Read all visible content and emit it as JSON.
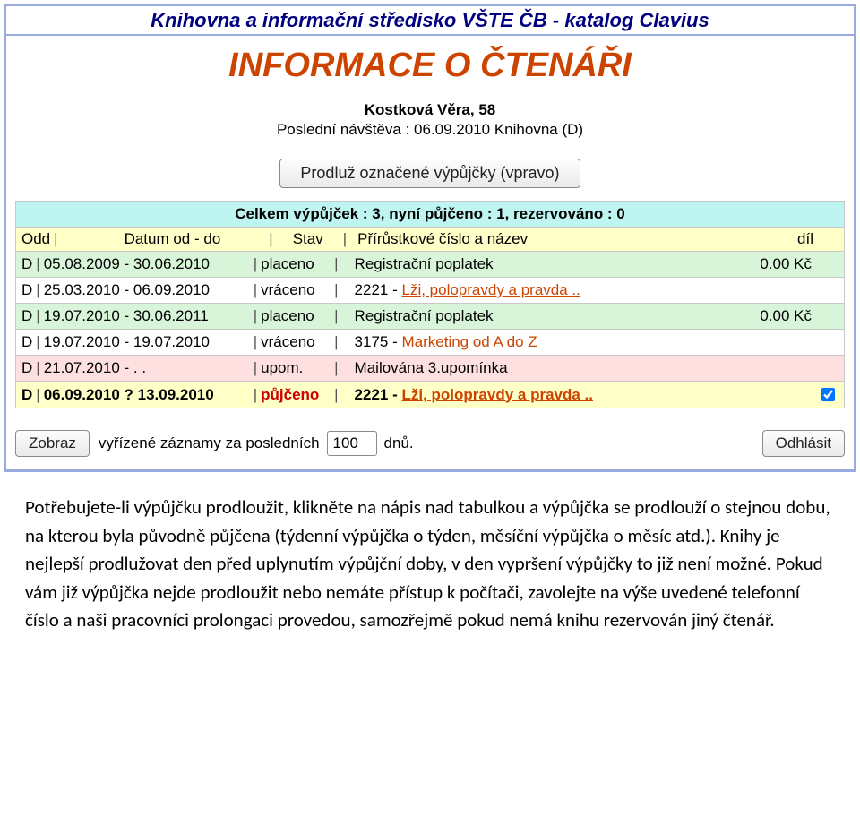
{
  "colors": {
    "accent": "#cc4400",
    "title_navy": "#000080",
    "panel_border": "#99aadd",
    "row_green": "#d9f5d9",
    "row_white": "#ffffff",
    "row_pink": "#ffe0e0",
    "row_yellow": "#ffffc8",
    "summary_bg": "#bff5f0"
  },
  "title_bar": "Knihovna a informační středisko VŠTE ČB - katalog Clavius",
  "heading": "INFORMACE O ČTENÁŘI",
  "reader": {
    "name": "Kostková Věra, 58",
    "last_visit": "Poslední návštěva : 06.09.2010 Knihovna (D)"
  },
  "prolong_button": "Prodluž označené výpůjčky (vpravo)",
  "summary_line": "Celkem výpůjček : 3, nyní půjčeno : 1, rezervováno : 0",
  "columns": {
    "odd": "Odd",
    "datum": "Datum od - do",
    "stav": "Stav",
    "prir": "Přírůstkové číslo a název",
    "dil": "díl"
  },
  "rows": [
    {
      "bg": "bg-green",
      "odd": "D",
      "dates": "05.08.2009 - 30.06.2010",
      "status": "placeno",
      "status_class": "",
      "id": "",
      "title_plain": "Registrační poplatek",
      "title_link": "",
      "amount": "0.00 Kč",
      "bold_row": false,
      "checkbox": false
    },
    {
      "bg": "bg-white",
      "odd": "D",
      "dates": "25.03.2010 - 06.09.2010",
      "status": "vráceno",
      "status_class": "",
      "id": "2221",
      "title_plain": "",
      "title_link": "Lži, polopravdy a pravda ..",
      "amount": "",
      "bold_row": false,
      "checkbox": false
    },
    {
      "bg": "bg-green",
      "odd": "D",
      "dates": "19.07.2010 - 30.06.2011",
      "status": "placeno",
      "status_class": "",
      "id": "",
      "title_plain": "Registrační poplatek",
      "title_link": "",
      "amount": "0.00 Kč",
      "bold_row": false,
      "checkbox": false
    },
    {
      "bg": "bg-white",
      "odd": "D",
      "dates": "19.07.2010 - 19.07.2010",
      "status": "vráceno",
      "status_class": "",
      "id": "3175",
      "title_plain": "",
      "title_link": "Marketing od A do Z",
      "amount": "",
      "bold_row": false,
      "checkbox": false
    },
    {
      "bg": "bg-pink",
      "odd": "D",
      "dates": "21.07.2010 -  .  .",
      "status": "upom.",
      "status_class": "",
      "id": "",
      "title_plain": "Mailována 3.upomínka",
      "title_link": "",
      "amount": "",
      "bold_row": false,
      "checkbox": false
    },
    {
      "bg": "bg-yellow",
      "odd": "D",
      "dates": "06.09.2010 ? 13.09.2010",
      "status": "půjčeno",
      "status_class": "status-pujceno",
      "id": "2221",
      "title_plain": "",
      "title_link": "Lži, polopravdy a pravda ..",
      "amount": "",
      "bold_row": true,
      "checkbox": true
    }
  ],
  "bottom": {
    "zobraz": "Zobraz",
    "text1": "vyřízené záznamy za posledních",
    "days": "100",
    "text2": "dnů.",
    "odhlasit": "Odhlásit"
  },
  "paragraph": "Potřebujete-li výpůjčku prodloužit, klikněte na nápis nad tabulkou a výpůjčka se prodlouží o stejnou dobu, na kterou byla původně půjčena (týdenní výpůjčka o týden, měsíční výpůjčka o měsíc atd.). Knihy je nejlepší prodlužovat den před uplynutím výpůjční doby, v den vypršení výpůjčky to již není možné. Pokud vám již výpůjčka nejde prodloužit nebo nemáte přístup k počítači, zavolejte na výše uvedené telefonní číslo a naši pracovníci prolongaci provedou, samozřejmě pokud nemá knihu rezervován jiný čtenář."
}
